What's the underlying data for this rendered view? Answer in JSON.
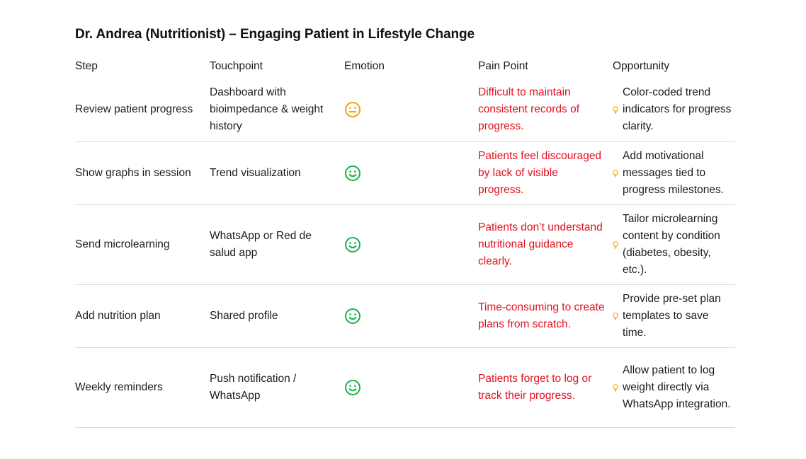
{
  "title": "Dr. Andrea (Nutritionist) – Engaging Patient in Lifestyle Change",
  "headers": {
    "step": "Step",
    "touchpoint": "Touchpoint",
    "emotion": "Emotion",
    "pain_point": "Pain Point",
    "opportunity": "Opportunity"
  },
  "colors": {
    "pain_point": "#e0111f",
    "neutral_emotion": "#f0a30a",
    "happy_emotion": "#19b44a",
    "bulb": "#f0b000",
    "divider": "#dcdcdc"
  },
  "rows": [
    {
      "step": "Review patient progress",
      "touchpoint": "Dashboard with bioimpedance & weight history",
      "emotion": "neutral-face-icon",
      "pain_point": "Difficult to maintain consistent records of progress.",
      "opportunity_icon": "lightbulb-icon",
      "opportunity": "Color-coded trend indicators for progress clarity."
    },
    {
      "step": "Show graphs in session",
      "touchpoint": "Trend visualization",
      "emotion": "smiling-face-icon",
      "pain_point": "Patients feel discouraged by lack of visible progress.",
      "opportunity_icon": "lightbulb-icon",
      "opportunity": "Add motivational messages tied to progress milestones."
    },
    {
      "step": "Send microlearning",
      "touchpoint": "WhatsApp or Red de salud app",
      "emotion": "smiling-face-icon",
      "pain_point": "Patients don’t understand nutritional guidance clearly.",
      "opportunity_icon": "lightbulb-icon",
      "opportunity": "Tailor microlearning content by condition (diabetes, obesity, etc.)."
    },
    {
      "step": "Add nutrition plan",
      "touchpoint": "Shared profile",
      "emotion": "smiling-face-icon",
      "pain_point": "Time-consuming to create plans from scratch.",
      "opportunity_icon": "lightbulb-icon",
      "opportunity": "Provide pre-set plan templates to save time."
    },
    {
      "step": "Weekly reminders",
      "touchpoint": "Push notification / WhatsApp",
      "emotion": "smiling-face-icon",
      "pain_point": "Patients forget to log or track their progress.",
      "opportunity_icon": "lightbulb-icon",
      "opportunity": "Allow patient to log weight directly via WhatsApp integration."
    }
  ]
}
